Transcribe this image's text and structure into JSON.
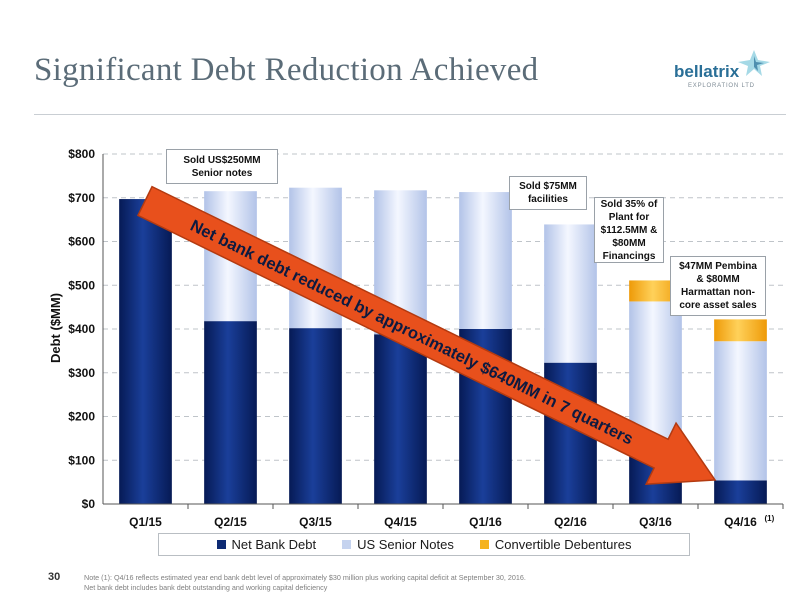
{
  "slide": {
    "title": "Significant Debt Reduction Achieved",
    "page_number": "30",
    "footnote_line1": "Note (1): Q4/16 reflects estimated year end bank debt level of approximately $30 million plus working capital deficit at September 30, 2016.",
    "footnote_line2": "Net bank debt includes bank debt outstanding and working capital deficiency"
  },
  "logo": {
    "name": "bellatrix",
    "subtitle": "EXPLORATION LTD"
  },
  "callouts": {
    "c1": "Sold US$250MM\nSenior notes",
    "c2": "Sold $75MM\nfacilities",
    "c3": "Sold 35% of\nPlant for\n$112.5MM &\n$80MM\nFinancings",
    "c4": "$47MM Pembina\n& $80MM\nHarmattan non-\ncore asset sales"
  },
  "arrow_text": "Net bank debt reduced by approximately $640MM in 7 quarters",
  "colors": {
    "net_bank_debt": "#0d2a73",
    "us_senior_notes": "#c5d3ef",
    "convertible_debentures": "#f5b21c",
    "arrow": "#e8501c"
  },
  "chart_data": {
    "type": "bar",
    "stacked": true,
    "categories": [
      "Q1/15",
      "Q2/15",
      "Q3/15",
      "Q4/15",
      "Q1/16",
      "Q2/16",
      "Q3/16",
      "Q4/16"
    ],
    "category_superscript": {
      "Q4/16": "(1)"
    },
    "series": [
      {
        "name": "Net Bank Debt",
        "values": [
          697,
          418,
          402,
          388,
          400,
          323,
          145,
          54
        ]
      },
      {
        "name": "US Senior Notes",
        "values": [
          0,
          297,
          321,
          329,
          313,
          316,
          318,
          318
        ]
      },
      {
        "name": "Convertible Debentures",
        "values": [
          0,
          0,
          0,
          0,
          0,
          0,
          48,
          50
        ]
      }
    ],
    "ylabel": "Debt ($MM)",
    "ylim": [
      0,
      800
    ],
    "yticks": [
      "$0",
      "$100",
      "$200",
      "$300",
      "$400",
      "$500",
      "$600",
      "$700",
      "$800"
    ],
    "grid": true,
    "legend_position": "bottom"
  }
}
